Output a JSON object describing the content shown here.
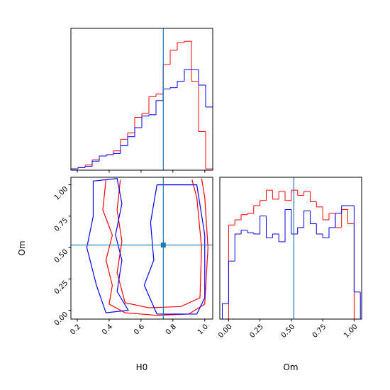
{
  "chart_data": [
    {
      "type": "histogram",
      "bins": [
        0.16,
        0.2045,
        0.249,
        0.2935,
        0.338,
        0.3825,
        0.427,
        0.4715,
        0.516,
        0.5605,
        0.605,
        0.6495,
        0.694,
        0.7385,
        0.783,
        0.8275,
        0.872,
        0.9165,
        0.961,
        1.0055,
        1.05
      ],
      "series": [
        {
          "color": "#ff0000",
          "values": [
            0.01,
            0.02,
            0.04,
            0.08,
            0.11,
            0.12,
            0.15,
            0.24,
            0.29,
            0.41,
            0.44,
            0.57,
            0.59,
            0.82,
            0.93,
            0.99,
            1.0,
            0.69,
            0.3,
            0.01
          ]
        },
        {
          "color": "#0000ff",
          "values": [
            0.01,
            0.02,
            0.03,
            0.07,
            0.11,
            0.12,
            0.13,
            0.19,
            0.26,
            0.33,
            0.42,
            0.43,
            0.54,
            0.63,
            0.64,
            0.69,
            0.78,
            0.78,
            0.66,
            0.49
          ]
        }
      ],
      "xlim": [
        0.16,
        1.05
      ],
      "ylim": [
        0,
        1.1
      ],
      "xticks": [
        0.2,
        0.4,
        0.6,
        0.8,
        1.0
      ],
      "truth": 0.74,
      "truth_color": "#1f77b4"
    },
    {
      "type": "contour",
      "x_label": "H0",
      "y_label": "Om",
      "xlim": [
        0.16,
        1.05
      ],
      "ylim": [
        -0.07,
        1.06
      ],
      "xticks": [
        0.2,
        0.4,
        0.6,
        0.8,
        {
          "value": 1.0,
          "label": "1.0"
        }
      ],
      "yticks": [
        {
          "value": 0,
          "label": "0.00"
        },
        {
          "value": 0.25,
          "label": "0.25"
        },
        {
          "value": 0.5,
          "label": "0.50"
        },
        {
          "value": 0.75,
          "label": "0.75"
        },
        {
          "value": 1.0,
          "label": "1.00"
        }
      ],
      "series": [
        {
          "color": "#ff0000",
          "x": [
            0.38,
            0.36,
            0.42,
            0.38,
            0.42,
            0.4,
            0.5,
            0.7,
            0.9,
            1.0,
            1.02,
            1.0,
            0.98
          ],
          "y": [
            1.04,
            0.8,
            0.6,
            0.4,
            0.2,
            0.05,
            -0.02,
            -0.04,
            -0.03,
            0.05,
            0.5,
            0.9,
            1.05
          ]
        },
        {
          "color": "#ff0000",
          "x": [
            0.47,
            0.45,
            0.48,
            0.45,
            0.5,
            0.65,
            0.85,
            0.97,
            0.98,
            0.95,
            0.92
          ],
          "y": [
            1.04,
            0.8,
            0.55,
            0.3,
            0.06,
            0.02,
            0.03,
            0.1,
            0.5,
            0.9,
            1.04
          ]
        },
        {
          "color": "#0000ff",
          "x": [
            0.3,
            0.45,
            0.48,
            0.44,
            0.48,
            0.45,
            0.52,
            0.38,
            0.32,
            0.26,
            0.3,
            0.3
          ],
          "y": [
            1.03,
            1.05,
            0.85,
            0.6,
            0.4,
            0.15,
            0.0,
            -0.02,
            0.2,
            0.5,
            0.75,
            1.03
          ]
        },
        {
          "color": "#0000ff",
          "x": [
            0.7,
            0.95,
            1.0,
            1.0,
            0.95,
            0.7,
            0.62,
            0.68,
            0.66,
            0.7
          ],
          "y": [
            1.0,
            1.0,
            0.6,
            0.1,
            -0.03,
            -0.03,
            0.2,
            0.4,
            0.7,
            1.0
          ]
        }
      ],
      "truth_x": 0.74,
      "truth_y": 0.52,
      "truth_color": "#1f77b4"
    },
    {
      "type": "histogram",
      "x_label": "Om",
      "bins": [
        -0.05,
        0.0,
        0.05,
        0.1,
        0.15,
        0.2,
        0.25,
        0.3,
        0.35,
        0.4,
        0.45,
        0.5,
        0.55,
        0.6,
        0.65,
        0.7,
        0.75,
        0.8,
        0.85,
        0.9,
        0.95,
        1.0,
        1.05
      ],
      "series": [
        {
          "color": "#ff0000",
          "values": [
            0,
            0.73,
            0.77,
            0.81,
            0.82,
            0.88,
            0.92,
            1.0,
            0.93,
            0.99,
            0.92,
            1.0,
            0.96,
            0.99,
            0.91,
            0.87,
            0.77,
            0.82,
            0.71,
            0.85,
            0.74,
            0
          ]
        },
        {
          "color": "#0000ff",
          "values": [
            0.12,
            0.45,
            0.66,
            0.69,
            0.67,
            0.66,
            0.8,
            0.63,
            0.66,
            0.6,
            0.85,
            0.66,
            0.71,
            0.84,
            0.74,
            0.66,
            0.63,
            0.71,
            0.82,
            0.88,
            0.88,
            0.21
          ]
        }
      ],
      "xlim": [
        -0.07,
        1.06
      ],
      "ylim": [
        0,
        1.1
      ],
      "xticks": [
        {
          "value": 0,
          "label": "0.00"
        },
        {
          "value": 0.25,
          "label": "0.25"
        },
        {
          "value": 0.5,
          "label": "0.50"
        },
        {
          "value": 0.75,
          "label": "0.75"
        },
        {
          "value": 1.0,
          "label": "1.00"
        }
      ],
      "truth": 0.52,
      "truth_color": "#1f77b4"
    }
  ]
}
